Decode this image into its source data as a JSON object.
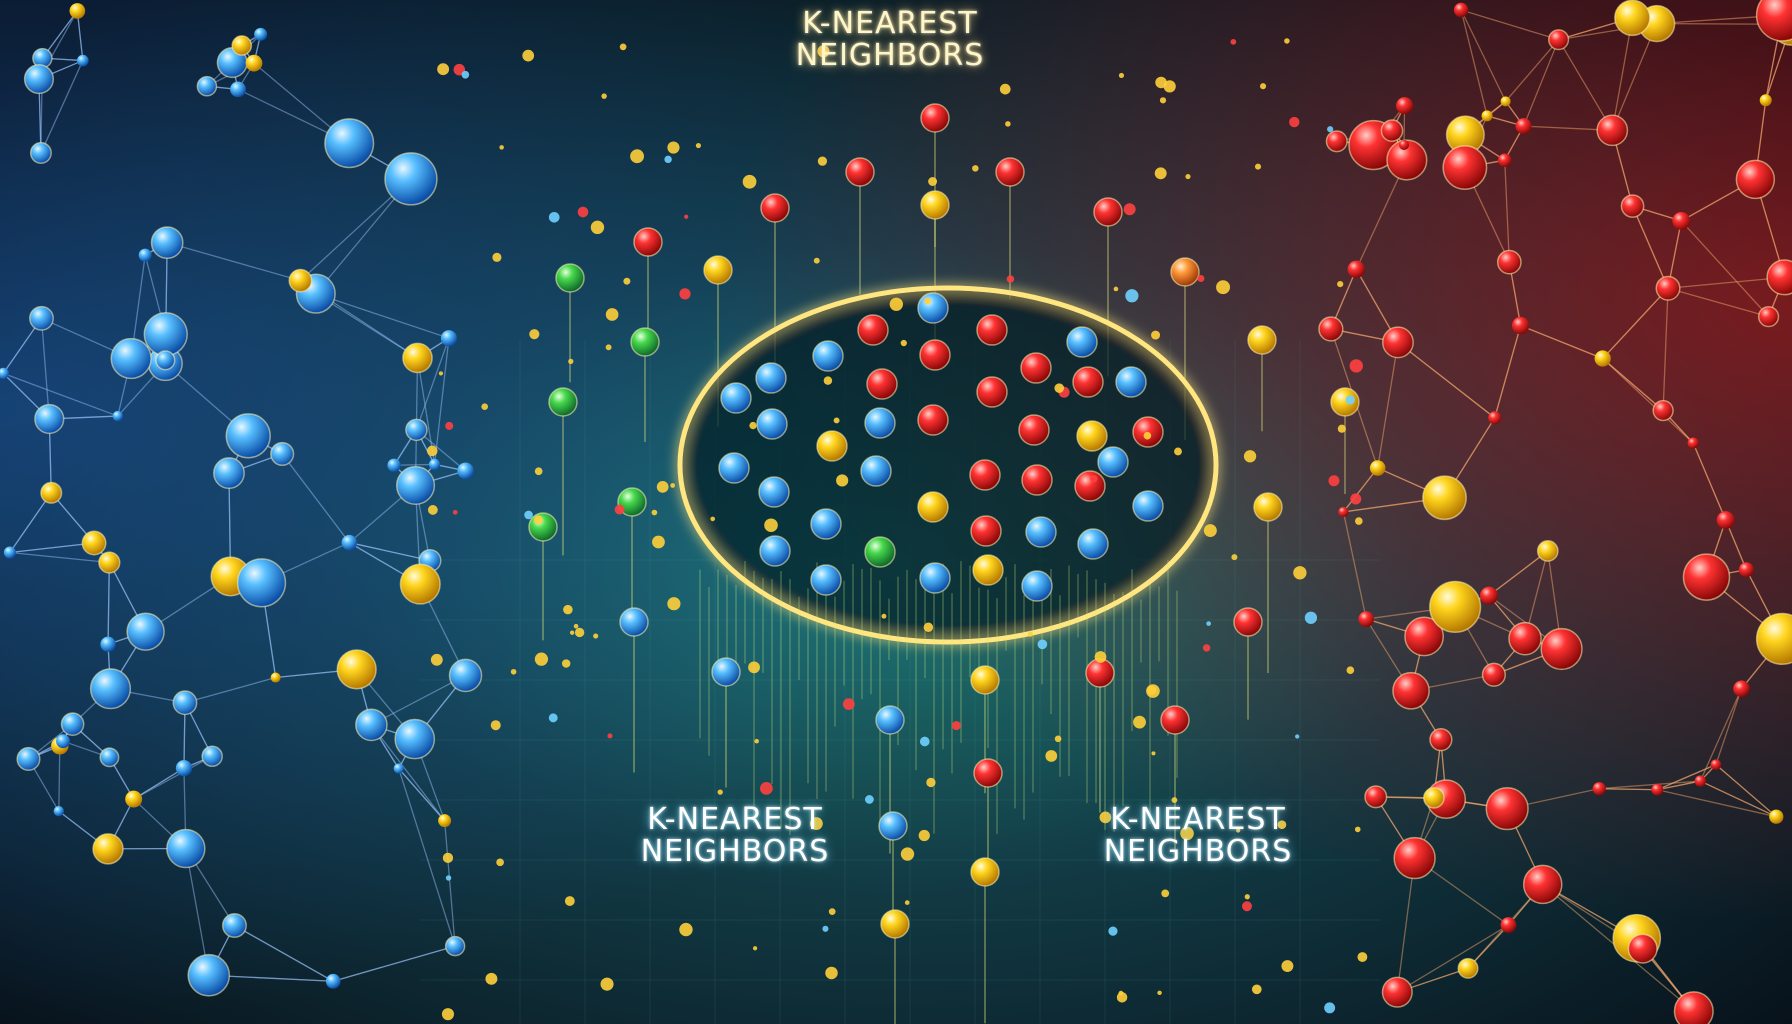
{
  "captions": {
    "top": {
      "line1": "K-NEAREST",
      "line2": "NEIGHBORS"
    },
    "bottom_left": {
      "line1": "K-NEAREST",
      "line2": "NEIGHBORS"
    },
    "bottom_right": {
      "line1": "K-NEAREST",
      "line2": "NEIGHBORS"
    }
  },
  "colors": {
    "blue_cluster": "#3aa8ff",
    "red_cluster": "#ff2a2a",
    "yellow_node": "#ffd21a",
    "green_node": "#3fd14a",
    "ellipse_glow": "#ffe680",
    "background_center": "#1d6a6a",
    "background_edge": "#08121c"
  }
}
